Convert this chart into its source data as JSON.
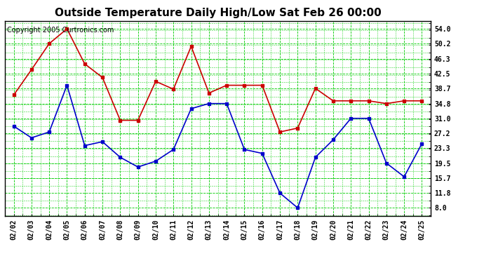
{
  "title": "Outside Temperature Daily High/Low Sat Feb 26 00:00",
  "copyright": "Copyright 2005 Curtronics.com",
  "dates": [
    "02/02",
    "02/03",
    "02/04",
    "02/05",
    "02/06",
    "02/07",
    "02/08",
    "02/09",
    "02/10",
    "02/11",
    "02/12",
    "02/13",
    "02/14",
    "02/15",
    "02/16",
    "02/17",
    "02/18",
    "02/19",
    "02/20",
    "02/21",
    "02/22",
    "02/23",
    "02/24",
    "02/25"
  ],
  "high": [
    37.0,
    43.5,
    50.2,
    54.0,
    45.0,
    41.5,
    30.5,
    30.5,
    40.5,
    38.5,
    49.5,
    37.5,
    39.5,
    39.5,
    39.5,
    27.5,
    28.5,
    38.7,
    35.5,
    35.5,
    35.5,
    34.8,
    35.5,
    35.5
  ],
  "low": [
    29.0,
    26.0,
    27.5,
    39.5,
    24.0,
    25.0,
    21.0,
    18.5,
    20.0,
    23.0,
    33.5,
    34.8,
    34.8,
    23.0,
    22.0,
    11.8,
    8.0,
    21.0,
    25.5,
    31.0,
    31.0,
    19.5,
    16.0,
    24.5
  ],
  "high_color": "#cc0000",
  "low_color": "#0000cc",
  "bg_color": "#ffffff",
  "plot_bg_color": "#ffffff",
  "grid_color": "#00cc00",
  "yticks": [
    8.0,
    11.8,
    15.7,
    19.5,
    23.3,
    27.2,
    31.0,
    34.8,
    38.7,
    42.5,
    46.3,
    50.2,
    54.0
  ],
  "ylim": [
    6.0,
    56.0
  ],
  "title_fontsize": 11,
  "copyright_fontsize": 7,
  "marker": "s",
  "markersize": 3,
  "linewidth": 1.2
}
